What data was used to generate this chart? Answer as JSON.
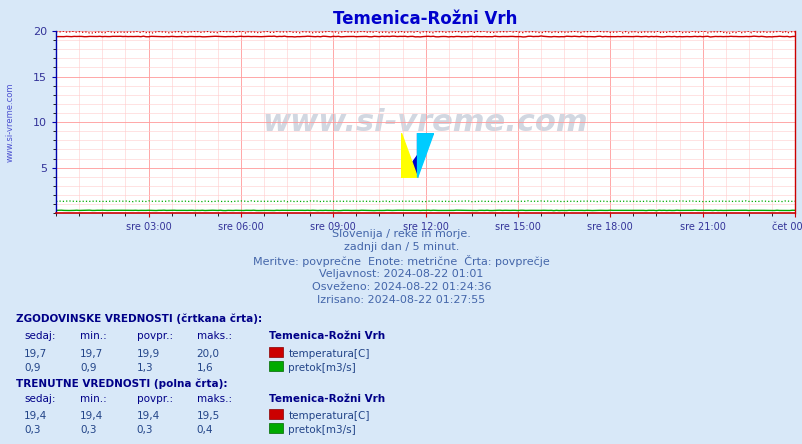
{
  "title": "Temenica-Rožni Vrh",
  "title_color": "#0000cc",
  "bg_color": "#d8e8f8",
  "plot_bg_color": "#ffffff",
  "grid_color_major": "#ff9999",
  "grid_color_minor": "#ffcccc",
  "ylim": [
    0,
    20
  ],
  "xlim": [
    0,
    288
  ],
  "xtick_positions": [
    36,
    72,
    108,
    144,
    180,
    216,
    252,
    288
  ],
  "xtick_labels": [
    "sre 03:00",
    "sre 06:00",
    "sre 09:00",
    "sre 12:00",
    "sre 15:00",
    "sre 18:00",
    "sre 21:00",
    "čet 00:00"
  ],
  "temp_dashed_value": 19.9,
  "temp_solid_value": 19.4,
  "pretok_dashed_value": 1.3,
  "pretok_solid_value": 0.3,
  "temp_color": "#cc0000",
  "pretok_color": "#00aa00",
  "watermark": "www.si-vreme.com",
  "watermark_color": "#1a3a6a",
  "left_label_color": "#0000bb",
  "text_block": [
    "Slovenija / reke in morje.",
    "zadnji dan / 5 minut.",
    "Meritve: povprečne  Enote: metrične  Črta: povprečje",
    "Veljavnost: 2024-08-22 01:01",
    "Osveženo: 2024-08-22 01:24:36",
    "Izrisano: 2024-08-22 01:27:55"
  ],
  "text_color": "#4466aa",
  "hist_label": "ZGODOVINSKE VREDNOSTI (črtkana črta):",
  "curr_label": "TRENUTNE VREDNOSTI (polna črta):",
  "table_header": [
    "sedaj:",
    "min.:",
    "povpr.:",
    "maks.:",
    "Temenica-Rožni Vrh"
  ],
  "hist_temp_row": [
    "19,7",
    "19,7",
    "19,9",
    "20,0",
    "temperatura[C]"
  ],
  "hist_pretok_row": [
    "0,9",
    "0,9",
    "1,3",
    "1,6",
    "pretok[m3/s]"
  ],
  "curr_temp_row": [
    "19,4",
    "19,4",
    "19,4",
    "19,5",
    "temperatura[C]"
  ],
  "curr_pretok_row": [
    "0,3",
    "0,3",
    "0,3",
    "0,4",
    "pretok[m3/s]"
  ],
  "temp_icon_color": "#cc0000",
  "pretok_icon_color": "#00aa00"
}
